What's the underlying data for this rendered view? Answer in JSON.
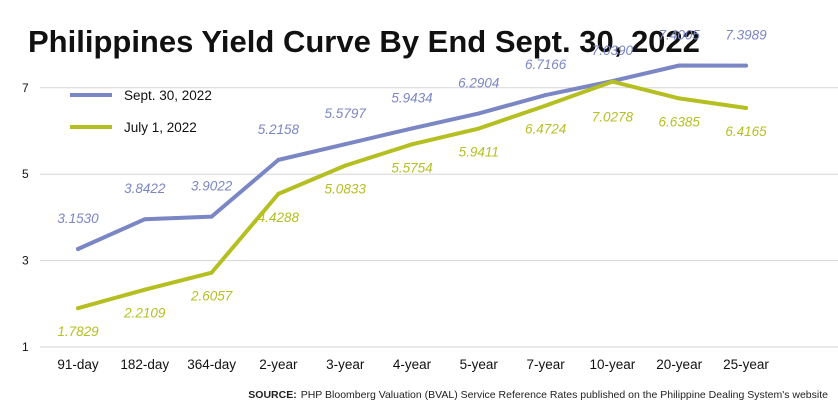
{
  "chart_data": {
    "type": "line",
    "title": "Philippines Yield Curve By End Sept. 30, 2022",
    "categories": [
      "91-day",
      "182-day",
      "364-day",
      "2-year",
      "3-year",
      "4-year",
      "5-year",
      "7-year",
      "10-year",
      "20-year",
      "25-year"
    ],
    "yticks": [
      "1",
      "3",
      "5",
      "7"
    ],
    "ylim": [
      1,
      7.9
    ],
    "grid": "horizontal",
    "legend_position": "top-left",
    "series": [
      {
        "name": "Sept. 30, 2022",
        "color": "#7b86c4",
        "values": [
          3.153,
          3.8422,
          3.9022,
          5.2158,
          5.5797,
          5.9434,
          6.2904,
          6.7166,
          7.039,
          7.4005,
          7.3989
        ],
        "labels": [
          "3.1530",
          "3.8422",
          "3.9022",
          "5.2158",
          "5.5797",
          "5.9434",
          "6.2904",
          "6.7166",
          "7.0390",
          "7.4005",
          "7.3989"
        ]
      },
      {
        "name": "July 1, 2022",
        "color": "#b5bf22",
        "values": [
          1.7829,
          2.2109,
          2.6057,
          4.4288,
          5.0833,
          5.5754,
          5.9411,
          6.4724,
          7.0278,
          6.6385,
          6.4165
        ],
        "labels": [
          "1.7829",
          "2.2109",
          "2.6057",
          "4.4288",
          "5.0833",
          "5.5754",
          "5.9411",
          "6.4724",
          "7.0278",
          "6.6385",
          "6.4165"
        ]
      }
    ],
    "source_label": "SOURCE:",
    "source_text": "PHP Bloomberg Valuation (BVAL) Service Reference Rates published on the Philippine Dealing System's website"
  }
}
